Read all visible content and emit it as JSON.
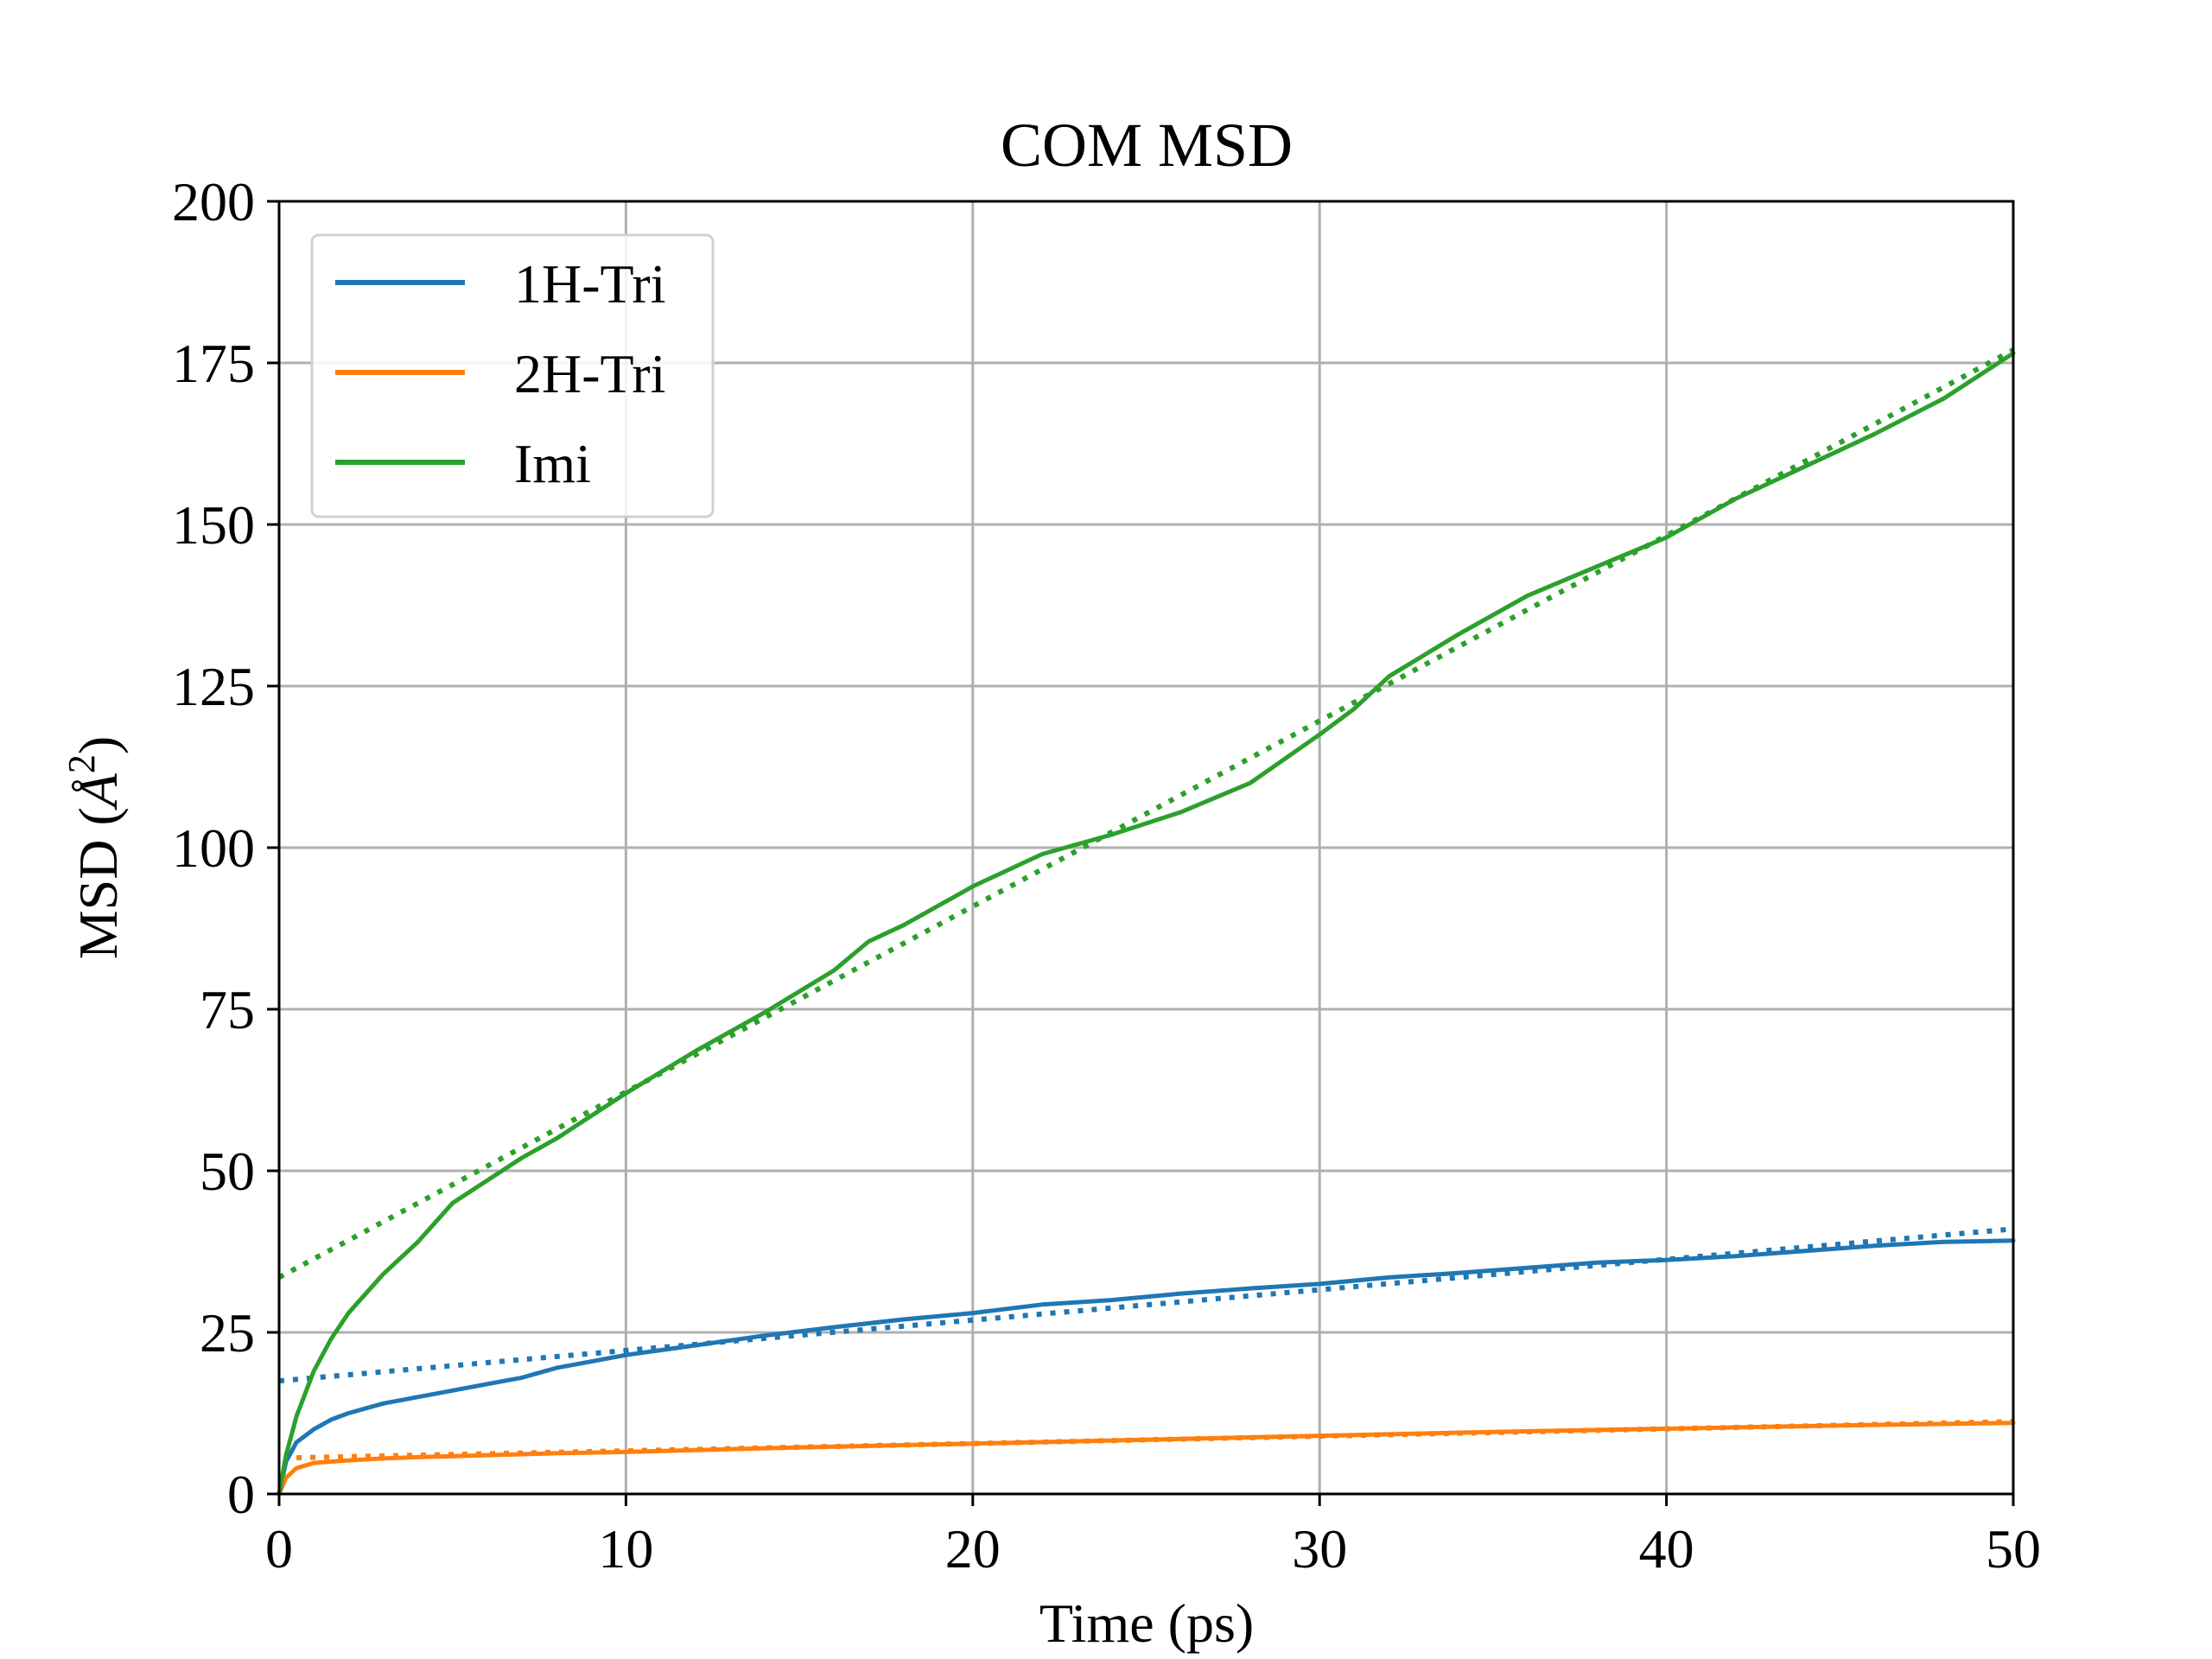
{
  "chart_data": {
    "type": "line",
    "title": "COM MSD",
    "xlabel": "Time (ps)",
    "ylabel": "MSD (",
    "ylabel_unit": "Å",
    "ylabel_exp": "2",
    "ylabel_close": ")",
    "xlim": [
      0,
      50
    ],
    "ylim": [
      0,
      200
    ],
    "xticks": [
      0,
      10,
      20,
      30,
      40,
      50
    ],
    "xtick_labels": [
      "0",
      "10",
      "20",
      "30",
      "40",
      "50"
    ],
    "yticks": [
      0,
      25,
      50,
      75,
      100,
      125,
      150,
      175,
      200
    ],
    "ytick_labels": [
      "0",
      "25",
      "50",
      "75",
      "100",
      "125",
      "150",
      "175",
      "200"
    ],
    "grid": true,
    "legend_position": "top-left",
    "series": [
      {
        "name": "1H-Tri",
        "color": "#1f77b4",
        "x": [
          0,
          0.2,
          0.5,
          1,
          1.5,
          2,
          3,
          4,
          5,
          6,
          7,
          8,
          9,
          10,
          12,
          14,
          16,
          18,
          20,
          22,
          24,
          26,
          28,
          30,
          32,
          34,
          36,
          38,
          40,
          42,
          44,
          46,
          48,
          50
        ],
        "values": [
          0,
          5,
          8,
          10,
          11.5,
          12.5,
          14,
          15,
          16,
          17,
          18,
          19.5,
          20.5,
          21.5,
          23,
          24.5,
          25.8,
          27,
          28,
          29.3,
          30,
          31,
          31.8,
          32.5,
          33.5,
          34.2,
          35,
          35.8,
          36.2,
          36.8,
          37.6,
          38.4,
          39,
          39.2
        ]
      },
      {
        "name": "2H-Tri",
        "color": "#ff7f0e",
        "x": [
          0,
          0.2,
          0.5,
          1,
          2,
          3,
          4,
          6,
          8,
          10,
          15,
          20,
          25,
          30,
          35,
          40,
          45,
          50
        ],
        "values": [
          0,
          2.5,
          4,
          4.8,
          5.2,
          5.5,
          5.7,
          6,
          6.3,
          6.5,
          7.2,
          7.8,
          8.4,
          9,
          9.6,
          10.1,
          10.6,
          11
        ]
      },
      {
        "name": "Imi",
        "color": "#2ca02c",
        "x": [
          0,
          0.2,
          0.5,
          1,
          1.5,
          2,
          3,
          4,
          5,
          6,
          7,
          8,
          9,
          10,
          12,
          14,
          16,
          17,
          18,
          20,
          22,
          24,
          26,
          28,
          30,
          31,
          32,
          34,
          36,
          38,
          40,
          42,
          44,
          46,
          48,
          50
        ],
        "values": [
          0,
          6,
          12,
          19,
          24,
          28,
          34,
          39,
          45,
          48.5,
          52,
          55,
          58.5,
          62,
          68.5,
          74.5,
          81,
          85.5,
          88,
          94,
          99,
          102,
          105.5,
          110,
          117.5,
          121.5,
          126.5,
          133,
          139,
          143.5,
          148,
          154,
          159,
          164,
          169.5,
          176.5
        ]
      }
    ],
    "fits": [
      {
        "series": "1H-Tri",
        "color": "#1f77b4",
        "x": [
          0,
          50
        ],
        "values": [
          17.5,
          41
        ]
      },
      {
        "series": "2H-Tri",
        "color": "#ff7f0e",
        "x": [
          0.5,
          50
        ],
        "values": [
          5.6,
          11.2
        ]
      },
      {
        "series": "Imi",
        "color": "#2ca02c",
        "x": [
          0,
          50
        ],
        "values": [
          33.5,
          177
        ]
      }
    ],
    "legend": [
      {
        "label": "1H-Tri",
        "color": "#1f77b4"
      },
      {
        "label": "2H-Tri",
        "color": "#ff7f0e"
      },
      {
        "label": "Imi",
        "color": "#2ca02c"
      }
    ]
  }
}
